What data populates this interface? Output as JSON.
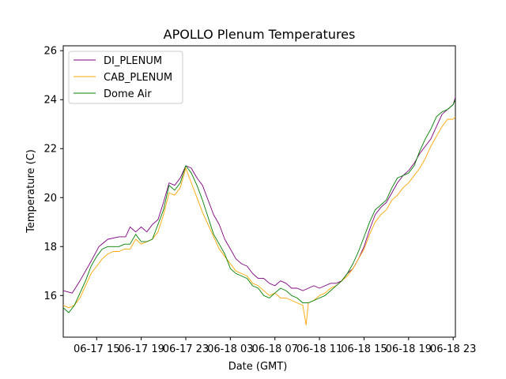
{
  "chart_data": {
    "type": "line",
    "title": "APOLLO Plenum Temperatures",
    "xlabel": "Date (GMT)",
    "ylabel": "Temperature (C)",
    "x_unit": "hours since 06-17 12:00 GMT",
    "xlim": [
      0,
      35.2
    ],
    "ylim": [
      14.3,
      26.2
    ],
    "grid": false,
    "legend_position": "upper-left",
    "x_ticks": [
      {
        "value": 3,
        "label": "06-17 15"
      },
      {
        "value": 7,
        "label": "06-17 19"
      },
      {
        "value": 11,
        "label": "06-17 23"
      },
      {
        "value": 15,
        "label": "06-18 03"
      },
      {
        "value": 19,
        "label": "06-18 07"
      },
      {
        "value": 23,
        "label": "06-18 11"
      },
      {
        "value": 27,
        "label": "06-18 15"
      },
      {
        "value": 31,
        "label": "06-18 19"
      },
      {
        "value": 35,
        "label": "06-18 23"
      }
    ],
    "y_ticks": [
      {
        "value": 16,
        "label": "16"
      },
      {
        "value": 18,
        "label": "18"
      },
      {
        "value": 20,
        "label": "20"
      },
      {
        "value": 22,
        "label": "22"
      },
      {
        "value": 24,
        "label": "24"
      },
      {
        "value": 26,
        "label": "26"
      }
    ],
    "series": [
      {
        "name": "DI_PLENUM",
        "color": "#800080",
        "x": [
          0,
          0.8,
          1.5,
          2.5,
          3.2,
          4.0,
          5.0,
          5.6,
          6.0,
          6.5,
          7.0,
          7.5,
          8.0,
          8.5,
          9.0,
          9.5,
          10.0,
          10.5,
          11.0,
          11.5,
          12.0,
          12.5,
          13.0,
          13.5,
          14.0,
          14.5,
          15.0,
          15.5,
          16.0,
          16.5,
          17.0,
          17.5,
          18.0,
          18.5,
          19.0,
          19.5,
          20.0,
          20.5,
          21.0,
          21.5,
          22.0,
          22.5,
          23.0,
          23.5,
          24.0,
          24.5,
          25.0,
          25.5,
          26.0,
          26.5,
          27.0,
          27.5,
          28.0,
          28.5,
          29.0,
          29.5,
          30.0,
          30.5,
          31.0,
          31.5,
          32.0,
          32.5,
          33.0,
          33.5,
          34.0,
          34.5,
          35.0,
          35.2
        ],
        "y": [
          16.2,
          16.1,
          16.6,
          17.4,
          18.0,
          18.3,
          18.4,
          18.4,
          18.8,
          18.6,
          18.8,
          18.6,
          18.9,
          19.1,
          19.8,
          20.6,
          20.5,
          20.8,
          21.3,
          21.2,
          20.8,
          20.5,
          19.9,
          19.3,
          18.9,
          18.3,
          17.9,
          17.5,
          17.3,
          17.2,
          16.9,
          16.7,
          16.7,
          16.5,
          16.4,
          16.6,
          16.5,
          16.3,
          16.3,
          16.2,
          16.3,
          16.4,
          16.3,
          16.4,
          16.5,
          16.5,
          16.6,
          16.9,
          17.1,
          17.5,
          18.0,
          18.7,
          19.3,
          19.6,
          19.8,
          20.2,
          20.6,
          20.9,
          21.1,
          21.4,
          21.8,
          22.1,
          22.4,
          22.9,
          23.4,
          23.6,
          23.8,
          24.1
        ]
      },
      {
        "name": "CAB_PLENUM",
        "color": "#ffa500",
        "x": [
          0,
          0.5,
          1.0,
          1.5,
          2.0,
          2.5,
          3.0,
          3.5,
          4.0,
          4.5,
          5.0,
          5.5,
          6.0,
          6.5,
          7.0,
          7.5,
          8.0,
          8.5,
          9.0,
          9.5,
          10.0,
          10.5,
          11.0,
          11.5,
          12.0,
          12.5,
          13.0,
          13.5,
          14.0,
          14.5,
          15.0,
          15.5,
          16.0,
          16.5,
          17.0,
          17.5,
          18.0,
          18.5,
          19.0,
          19.5,
          20.0,
          20.5,
          21.0,
          21.5,
          21.8,
          22.0,
          22.5,
          23.0,
          23.5,
          24.0,
          24.5,
          25.0,
          25.5,
          26.0,
          26.5,
          27.0,
          27.5,
          28.0,
          28.5,
          29.0,
          29.5,
          30.0,
          30.5,
          31.0,
          31.5,
          32.0,
          32.5,
          33.0,
          33.5,
          34.0,
          34.5,
          35.0,
          35.2
        ],
        "y": [
          15.6,
          15.5,
          15.6,
          15.9,
          16.4,
          16.9,
          17.2,
          17.5,
          17.7,
          17.8,
          17.8,
          17.9,
          17.9,
          18.3,
          18.1,
          18.2,
          18.3,
          18.6,
          19.3,
          20.2,
          20.1,
          20.4,
          21.2,
          20.6,
          20.0,
          19.4,
          18.9,
          18.4,
          17.9,
          17.6,
          17.3,
          17.0,
          16.9,
          16.8,
          16.5,
          16.4,
          16.2,
          16.0,
          16.1,
          15.9,
          15.9,
          15.8,
          15.7,
          15.6,
          14.8,
          15.7,
          15.8,
          16.0,
          16.1,
          16.3,
          16.4,
          16.6,
          16.8,
          17.1,
          17.5,
          17.9,
          18.5,
          19.0,
          19.3,
          19.5,
          19.9,
          20.1,
          20.4,
          20.6,
          20.9,
          21.2,
          21.6,
          22.1,
          22.5,
          22.9,
          23.2,
          23.2,
          23.3
        ]
      },
      {
        "name": "Dome Air",
        "color": "#008000",
        "x": [
          0,
          0.5,
          1.0,
          1.5,
          2.0,
          2.5,
          3.0,
          3.5,
          4.0,
          4.5,
          5.0,
          5.5,
          6.0,
          6.5,
          7.0,
          7.5,
          8.0,
          8.5,
          9.0,
          9.5,
          10.0,
          10.5,
          11.0,
          11.5,
          12.0,
          12.5,
          13.0,
          13.5,
          14.0,
          14.5,
          15.0,
          15.5,
          16.0,
          16.5,
          17.0,
          17.5,
          18.0,
          18.5,
          19.0,
          19.5,
          20.0,
          20.5,
          21.0,
          21.5,
          22.0,
          22.5,
          23.0,
          23.5,
          24.0,
          24.5,
          25.0,
          25.5,
          26.0,
          26.5,
          27.0,
          27.5,
          28.0,
          28.5,
          29.0,
          29.5,
          30.0,
          30.5,
          31.0,
          31.5,
          32.0,
          32.5,
          33.0,
          33.5,
          34.0,
          34.5,
          35.0,
          35.2
        ],
        "y": [
          15.5,
          15.3,
          15.6,
          16.1,
          16.6,
          17.2,
          17.6,
          17.9,
          18.0,
          18.0,
          18.0,
          18.1,
          18.1,
          18.5,
          18.2,
          18.2,
          18.3,
          18.9,
          19.5,
          20.5,
          20.3,
          20.6,
          21.3,
          21.0,
          20.5,
          19.9,
          19.2,
          18.5,
          18.1,
          17.7,
          17.1,
          16.9,
          16.8,
          16.7,
          16.4,
          16.3,
          16.0,
          15.9,
          16.1,
          16.3,
          16.2,
          16.0,
          15.9,
          15.7,
          15.7,
          15.8,
          15.9,
          16.0,
          16.2,
          16.4,
          16.6,
          16.9,
          17.3,
          17.8,
          18.4,
          19.0,
          19.5,
          19.7,
          19.9,
          20.4,
          20.8,
          20.9,
          21.0,
          21.3,
          21.9,
          22.4,
          22.8,
          23.3,
          23.5,
          23.6,
          23.8,
          24.0
        ]
      }
    ]
  }
}
